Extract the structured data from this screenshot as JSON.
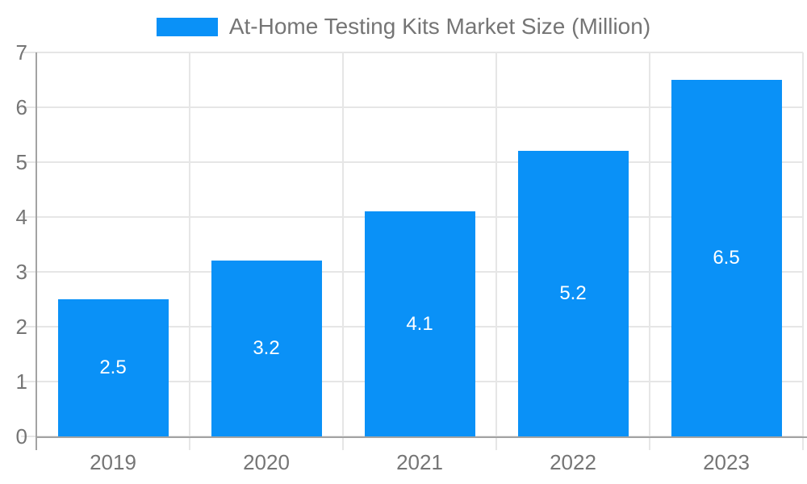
{
  "chart_data": {
    "type": "bar",
    "title": "At-Home Testing Kits Market Size (Million)",
    "categories": [
      "2019",
      "2020",
      "2021",
      "2022",
      "2023"
    ],
    "values": [
      2.5,
      3.2,
      4.1,
      5.2,
      6.5
    ],
    "bar_labels": [
      "2.5",
      "3.2",
      "4.1",
      "5.2",
      "6.5"
    ],
    "series": [
      {
        "name": "At-Home Testing Kits Market Size (Million)",
        "values": [
          2.5,
          3.2,
          4.1,
          5.2,
          6.5
        ]
      }
    ],
    "xlabel": "",
    "ylabel": "",
    "ylim": [
      0,
      7
    ],
    "yticks": [
      0,
      1,
      2,
      3,
      4,
      5,
      6,
      7
    ],
    "grid": "both",
    "legend_position": "top-center",
    "colors": {
      "bar": "#0a91f7",
      "gridline": "#e6e6e6",
      "axis_line": "#a3a3a3",
      "axis_label_text": "#757575",
      "legend_text": "#757575",
      "bar_label_text": "#ffffff",
      "background": "#ffffff"
    }
  },
  "legend": {
    "label": "At-Home Testing Kits Market Size (Million)"
  }
}
